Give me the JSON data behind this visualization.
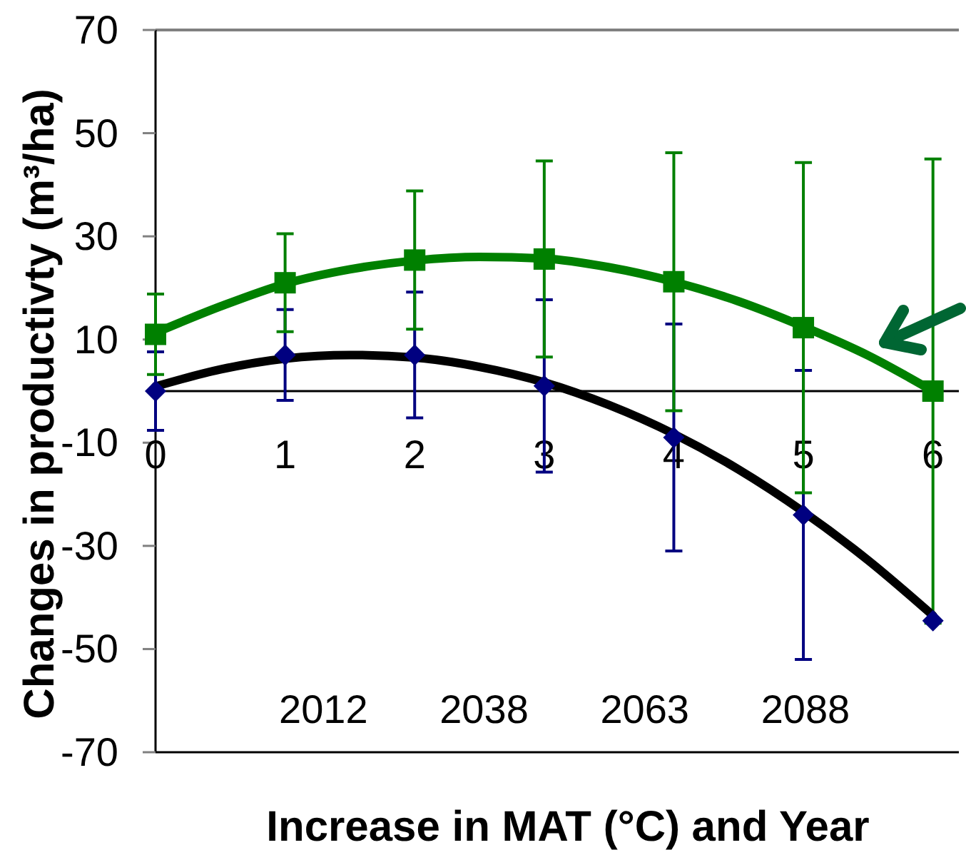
{
  "chart_data": {
    "type": "scatter",
    "xlabel": "Increase in MAT (°C) and Year",
    "ylabel": "Changes in productivty (m³/ha)",
    "xlim": [
      0,
      6.2
    ],
    "xticks": [
      0,
      1,
      2,
      3,
      4,
      5,
      6
    ],
    "ylim": [
      -70,
      70
    ],
    "yticks": [
      70,
      50,
      30,
      10,
      -10,
      -30,
      -50,
      -70
    ],
    "series": [
      {
        "type": "line",
        "color": "#008000",
        "marker": "none",
        "x": [
          0,
          0.5,
          1,
          1.5,
          2,
          2.5,
          3,
          3.5,
          4,
          4.5,
          5,
          5.5,
          6
        ],
        "values": [
          11.3,
          16.4,
          20.8,
          23.6,
          25.3,
          26.0,
          25.7,
          24.0,
          21.2,
          17.4,
          12.5,
          6.9,
          0
        ]
      },
      {
        "type": "line",
        "color": "#000000",
        "marker": "none",
        "x": [
          0,
          0.5,
          1,
          1.5,
          2,
          2.5,
          3,
          3.5,
          4,
          4.5,
          5,
          5.5,
          6
        ],
        "values": [
          0.9,
          4.2,
          6.3,
          7.0,
          6.5,
          4.7,
          1.7,
          -2.7,
          -8.3,
          -15.2,
          -23.4,
          -32.8,
          -43.5
        ]
      },
      {
        "color": "#000080",
        "marker": "diamond",
        "x": [
          0,
          1,
          2,
          3,
          4,
          5,
          6
        ],
        "values": [
          0,
          7,
          7,
          1,
          -9,
          -24,
          -44.5
        ],
        "errors": [
          7.6,
          8.8,
          12.2,
          16.7,
          22,
          28,
          null
        ]
      },
      {
        "color": "#008000",
        "marker": "square",
        "x": [
          0,
          1,
          2,
          3,
          4,
          5,
          6
        ],
        "values": [
          11,
          21,
          25.4,
          25.6,
          21.2,
          12.3,
          0
        ],
        "errors": [
          7.8,
          9.5,
          13.4,
          19,
          25,
          32,
          45
        ]
      }
    ],
    "annotations": [
      "2012",
      "2038",
      "2063",
      "2088"
    ]
  }
}
